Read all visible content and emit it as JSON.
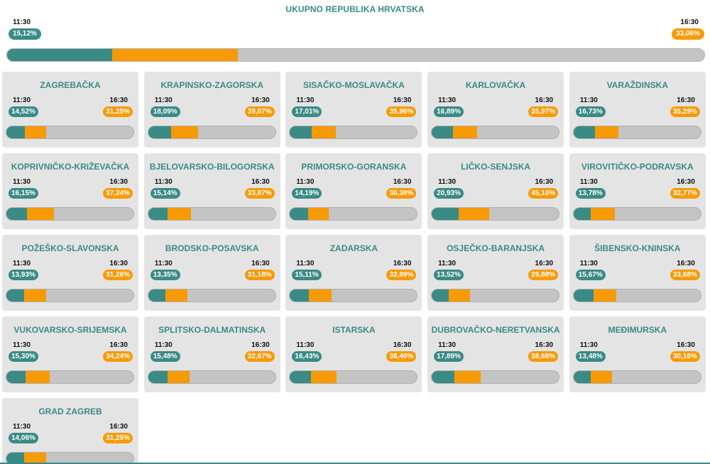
{
  "total": {
    "title": "UKUPNO REPUBLIKA HRVATSKA",
    "time_early": "11:30",
    "time_late": "16:30",
    "pct_early": "15,12%",
    "pct_late": "33,06%",
    "frac_early": 0.1512,
    "frac_late": 0.3306
  },
  "colors": {
    "early": "#3a8a86",
    "late": "#f79a06",
    "track": "#c4c4c4",
    "card_bg": "#e4e4e4"
  },
  "counties": [
    {
      "name": "ZAGREBAČKA",
      "t1": "11:30",
      "t2": "16:30",
      "p1": "14,52%",
      "p2": "31,25%",
      "f1": 0.1452,
      "f2": 0.3125
    },
    {
      "name": "KRAPINSKO-ZAGORSKA",
      "t1": "11:30",
      "t2": "16:30",
      "p1": "18,09%",
      "p2": "39,07%",
      "f1": 0.1809,
      "f2": 0.3907
    },
    {
      "name": "SISAČKO-MOSLAVAČKA",
      "t1": "11:30",
      "t2": "16:30",
      "p1": "17,01%",
      "p2": "35,96%",
      "f1": 0.1701,
      "f2": 0.3596
    },
    {
      "name": "KARLOVAČKA",
      "t1": "11:30",
      "t2": "16:30",
      "p1": "16,89%",
      "p2": "35,97%",
      "f1": 0.1689,
      "f2": 0.3597
    },
    {
      "name": "VARAŽDINSKA",
      "t1": "11:30",
      "t2": "16:30",
      "p1": "16,73%",
      "p2": "35,29%",
      "f1": 0.1673,
      "f2": 0.3529
    },
    {
      "name": "KOPRIVNIČKO-KRIŽEVAČKA",
      "t1": "11:30",
      "t2": "16:30",
      "p1": "16,15%",
      "p2": "37,24%",
      "f1": 0.1615,
      "f2": 0.3724
    },
    {
      "name": "BJELOVARSKO-BILOGORSKA",
      "t1": "11:30",
      "t2": "16:30",
      "p1": "15,14%",
      "p2": "33,87%",
      "f1": 0.1514,
      "f2": 0.3387
    },
    {
      "name": "PRIMORSKO-GORANSKA",
      "t1": "11:30",
      "t2": "16:30",
      "p1": "14,19%",
      "p2": "30,38%",
      "f1": 0.1419,
      "f2": 0.3038
    },
    {
      "name": "LIČKO-SENJSKA",
      "t1": "11:30",
      "t2": "16:30",
      "p1": "20,93%",
      "p2": "45,10%",
      "f1": 0.2093,
      "f2": 0.451
    },
    {
      "name": "VIROVITIČKO-PODRAVSKA",
      "t1": "11:30",
      "t2": "16:30",
      "p1": "13,78%",
      "p2": "32,77%",
      "f1": 0.1378,
      "f2": 0.3277
    },
    {
      "name": "POŽEŠKO-SLAVONSKA",
      "t1": "11:30",
      "t2": "16:30",
      "p1": "13,93%",
      "p2": "31,26%",
      "f1": 0.1393,
      "f2": 0.3126
    },
    {
      "name": "BRODSKO-POSAVSKA",
      "t1": "11:30",
      "t2": "16:30",
      "p1": "13,35%",
      "p2": "31,18%",
      "f1": 0.1335,
      "f2": 0.3118
    },
    {
      "name": "ZADARSKA",
      "t1": "11:30",
      "t2": "16:30",
      "p1": "15,11%",
      "p2": "32,89%",
      "f1": 0.1511,
      "f2": 0.3289
    },
    {
      "name": "OSJEČKO-BARANJSKA",
      "t1": "11:30",
      "t2": "16:30",
      "p1": "13,52%",
      "p2": "29,88%",
      "f1": 0.1352,
      "f2": 0.2988
    },
    {
      "name": "ŠIBENSKO-KNINSKA",
      "t1": "11:30",
      "t2": "16:30",
      "p1": "15,67%",
      "p2": "33,68%",
      "f1": 0.1567,
      "f2": 0.3368
    },
    {
      "name": "VUKOVARSKO-SRIJEMSKA",
      "t1": "11:30",
      "t2": "16:30",
      "p1": "15,30%",
      "p2": "34,24%",
      "f1": 0.153,
      "f2": 0.3424
    },
    {
      "name": "SPLITSKO-DALMATINSKA",
      "t1": "11:30",
      "t2": "16:30",
      "p1": "15,48%",
      "p2": "32,67%",
      "f1": 0.1548,
      "f2": 0.3267
    },
    {
      "name": "ISTARSKA",
      "t1": "11:30",
      "t2": "16:30",
      "p1": "16,43%",
      "p2": "36,40%",
      "f1": 0.1643,
      "f2": 0.364
    },
    {
      "name": "DUBROVAČKO-NERETVANSKA",
      "t1": "11:30",
      "t2": "16:30",
      "p1": "17,89%",
      "p2": "38,68%",
      "f1": 0.1789,
      "f2": 0.3868
    },
    {
      "name": "MEĐIMURSKA",
      "t1": "11:30",
      "t2": "16:30",
      "p1": "13,48%",
      "p2": "30,16%",
      "f1": 0.1348,
      "f2": 0.3016
    },
    {
      "name": "GRAD ZAGREB",
      "t1": "11:30",
      "t2": "16:30",
      "p1": "14,06%",
      "p2": "31,25%",
      "f1": 0.1406,
      "f2": 0.3125
    }
  ]
}
